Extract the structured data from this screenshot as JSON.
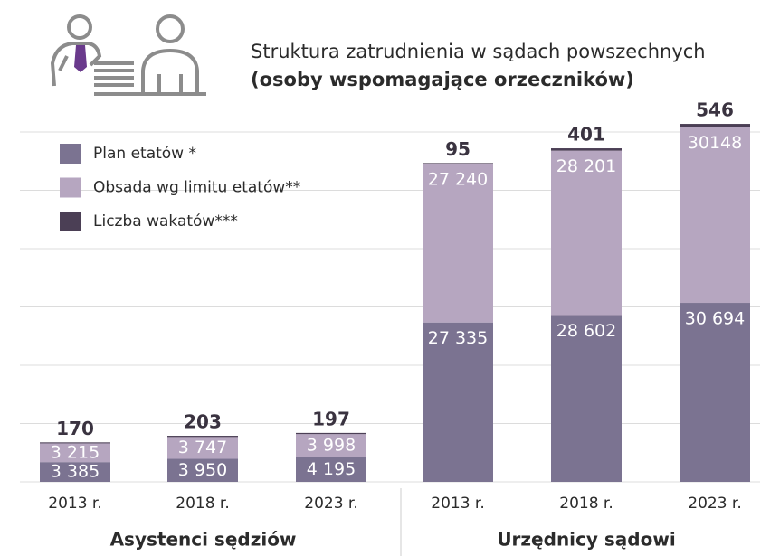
{
  "chart_data": {
    "type": "bar",
    "stacked": true,
    "title": "Struktura zatrudnienia w sądach powszechnych",
    "subtitle": "(osoby wspomagające orzeczników)",
    "groups": [
      "Asystenci sędziów",
      "Urzędnicy sądowi"
    ],
    "categories": [
      "2013 r.",
      "2018 r.",
      "2023 r.",
      "2013 r.",
      "2018 r.",
      "2023 r."
    ],
    "series": [
      {
        "name": "Plan etatów *",
        "color": "#7b7391",
        "values": [
          3385,
          3950,
          4195,
          27335,
          28602,
          30694
        ],
        "value_labels": [
          "3 385",
          "3 950",
          "4 195",
          "27 335",
          "28 602",
          "30 694"
        ]
      },
      {
        "name": "Obsada wg limitu etatów**",
        "color": "#b6a6c0",
        "values": [
          3215,
          3747,
          3998,
          27240,
          28201,
          30148
        ],
        "value_labels": [
          "3 215",
          "3 747",
          "3 998",
          "27 240",
          "28 201",
          "30148"
        ]
      },
      {
        "name": "Liczba wakatów***",
        "color": "#4b3f55",
        "values": [
          170,
          203,
          197,
          95,
          401,
          546
        ]
      }
    ],
    "ylim": [
      0,
      60000
    ],
    "yticks": [
      0,
      10000,
      20000,
      30000,
      40000,
      50000,
      60000
    ],
    "grid": true
  }
}
